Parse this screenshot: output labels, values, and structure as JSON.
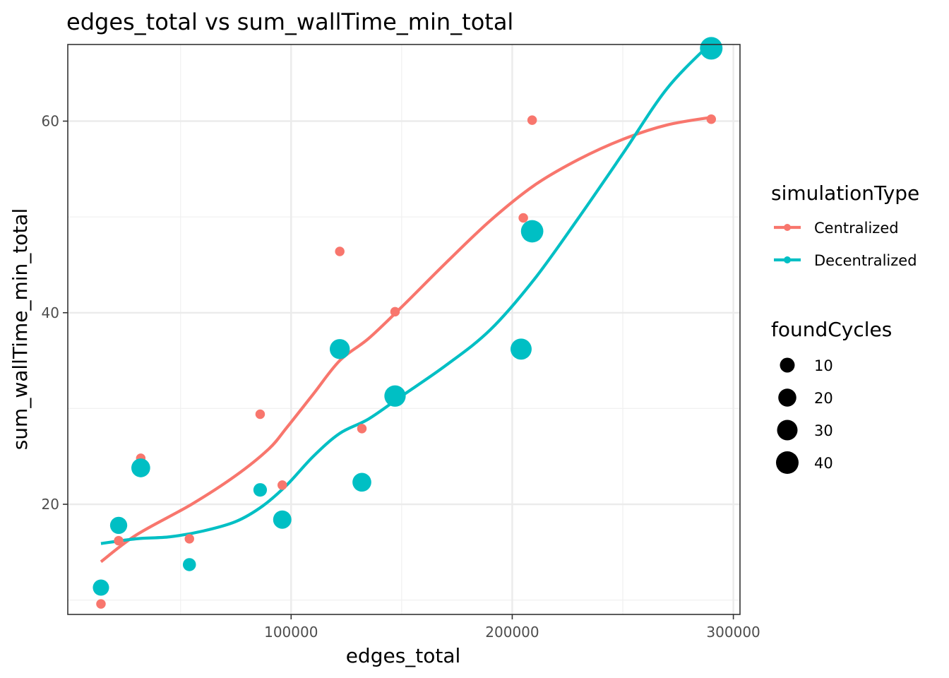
{
  "chart_data": {
    "type": "scatter",
    "title": "edges_total  vs  sum_wallTime_min_total",
    "xlabel": "edges_total",
    "ylabel": "sum_wallTime_min_total",
    "xlim": [
      -1000,
      303000
    ],
    "ylim": [
      8.5,
      68.0
    ],
    "xticks": [
      100000,
      200000,
      300000
    ],
    "xtick_labels": [
      "100000",
      "200000",
      "300000"
    ],
    "yticks": [
      20,
      40,
      60
    ],
    "ytick_labels": [
      "20",
      "40",
      "60"
    ],
    "grid": true,
    "legend_position": "right",
    "colors": {
      "Centralized": "#f8766d",
      "Decentralized": "#00bfc4"
    },
    "color_legend": {
      "title": "simulationType",
      "entries": [
        "Centralized",
        "Decentralized"
      ]
    },
    "size_legend": {
      "title": "foundCycles",
      "entries": [
        10,
        20,
        30,
        40
      ]
    },
    "series": [
      {
        "name": "Centralized",
        "points": [
          {
            "x": 14000,
            "y": 9.6,
            "size": 1
          },
          {
            "x": 22000,
            "y": 16.2,
            "size": 1
          },
          {
            "x": 32000,
            "y": 24.8,
            "size": 1
          },
          {
            "x": 54000,
            "y": 16.4,
            "size": 1
          },
          {
            "x": 86000,
            "y": 29.4,
            "size": 1
          },
          {
            "x": 96000,
            "y": 22.0,
            "size": 1
          },
          {
            "x": 122000,
            "y": 46.4,
            "size": 1
          },
          {
            "x": 132000,
            "y": 27.9,
            "size": 1
          },
          {
            "x": 147000,
            "y": 40.1,
            "size": 1
          },
          {
            "x": 205000,
            "y": 49.9,
            "size": 1
          },
          {
            "x": 209000,
            "y": 60.1,
            "size": 1
          },
          {
            "x": 290000,
            "y": 60.2,
            "size": 1
          }
        ],
        "smooth": [
          {
            "x": 14000,
            "y": 14.0
          },
          {
            "x": 30000,
            "y": 16.8
          },
          {
            "x": 55000,
            "y": 20.0
          },
          {
            "x": 75000,
            "y": 23.0
          },
          {
            "x": 90000,
            "y": 25.8
          },
          {
            "x": 98000,
            "y": 28.0
          },
          {
            "x": 110000,
            "y": 31.5
          },
          {
            "x": 122000,
            "y": 35.0
          },
          {
            "x": 135000,
            "y": 37.3
          },
          {
            "x": 150000,
            "y": 40.6
          },
          {
            "x": 170000,
            "y": 45.2
          },
          {
            "x": 190000,
            "y": 49.6
          },
          {
            "x": 210000,
            "y": 53.3
          },
          {
            "x": 230000,
            "y": 56.0
          },
          {
            "x": 250000,
            "y": 58.1
          },
          {
            "x": 270000,
            "y": 59.6
          },
          {
            "x": 290000,
            "y": 60.4
          }
        ]
      },
      {
        "name": "Decentralized",
        "points": [
          {
            "x": 14000,
            "y": 11.3,
            "size": 14
          },
          {
            "x": 22000,
            "y": 17.8,
            "size": 17
          },
          {
            "x": 32000,
            "y": 23.8,
            "size": 23
          },
          {
            "x": 54000,
            "y": 13.7,
            "size": 6
          },
          {
            "x": 86000,
            "y": 21.5,
            "size": 7
          },
          {
            "x": 96000,
            "y": 18.4,
            "size": 21
          },
          {
            "x": 122000,
            "y": 36.2,
            "size": 28
          },
          {
            "x": 132000,
            "y": 22.3,
            "size": 23
          },
          {
            "x": 147000,
            "y": 31.3,
            "size": 34
          },
          {
            "x": 204000,
            "y": 36.2,
            "size": 33
          },
          {
            "x": 209000,
            "y": 48.5,
            "size": 39
          },
          {
            "x": 290000,
            "y": 67.6,
            "size": 40
          }
        ],
        "smooth": [
          {
            "x": 14000,
            "y": 15.9
          },
          {
            "x": 30000,
            "y": 16.4
          },
          {
            "x": 45000,
            "y": 16.6
          },
          {
            "x": 60000,
            "y": 17.2
          },
          {
            "x": 75000,
            "y": 18.2
          },
          {
            "x": 87000,
            "y": 19.8
          },
          {
            "x": 98000,
            "y": 22.0
          },
          {
            "x": 110000,
            "y": 25.0
          },
          {
            "x": 122000,
            "y": 27.4
          },
          {
            "x": 135000,
            "y": 28.9
          },
          {
            "x": 150000,
            "y": 31.3
          },
          {
            "x": 170000,
            "y": 34.5
          },
          {
            "x": 190000,
            "y": 38.2
          },
          {
            "x": 210000,
            "y": 43.5
          },
          {
            "x": 230000,
            "y": 49.9
          },
          {
            "x": 250000,
            "y": 56.6
          },
          {
            "x": 270000,
            "y": 63.4
          },
          {
            "x": 290000,
            "y": 68.2
          }
        ]
      }
    ]
  }
}
